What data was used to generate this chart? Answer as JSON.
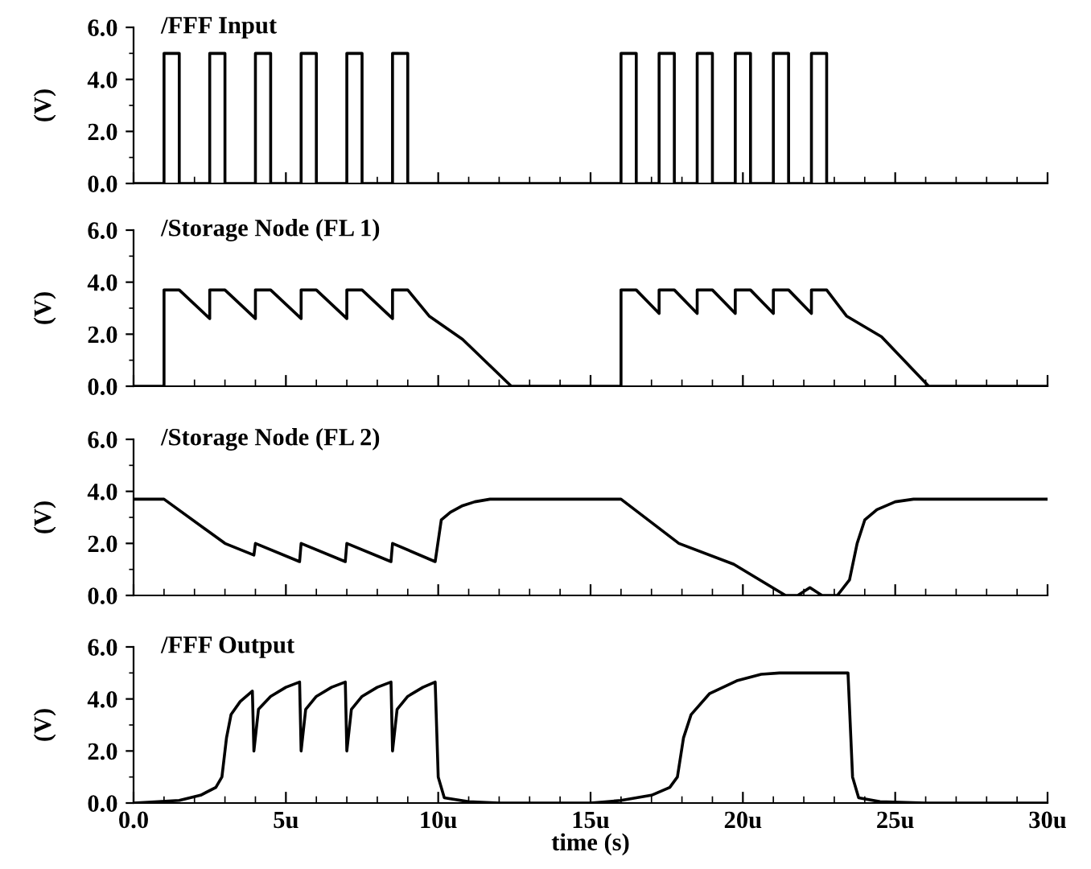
{
  "chart_data": [
    {
      "type": "line",
      "title": "/FFF Input",
      "ylabel": "(V)",
      "xlim": [
        0,
        30
      ],
      "xticks": [
        {
          "value": 0,
          "label": null
        },
        {
          "value": 5,
          "label": null
        },
        {
          "value": 10,
          "label": null
        },
        {
          "value": 15,
          "label": null
        },
        {
          "value": 20,
          "label": null
        },
        {
          "value": 25,
          "label": null
        },
        {
          "value": 30,
          "label": null
        }
      ],
      "ylim": [
        0,
        6
      ],
      "yticks": [
        {
          "value": 0,
          "label": "0.0"
        },
        {
          "value": 2,
          "label": "2.0"
        },
        {
          "value": 4,
          "label": "4.0"
        },
        {
          "value": 6,
          "label": "6.0"
        }
      ],
      "tick_labels": "y",
      "line_style": "solid",
      "series": [
        {
          "color": "#000000",
          "x": [
            0,
            1,
            1,
            1.5,
            1.5,
            2.5,
            2.5,
            3,
            3,
            4,
            4,
            4.5,
            4.5,
            5.5,
            5.5,
            6,
            6,
            7,
            7,
            7.5,
            7.5,
            8.5,
            8.5,
            9,
            9,
            16,
            16,
            16.5,
            16.5,
            17.25,
            17.25,
            17.75,
            17.75,
            18.5,
            18.5,
            19,
            19,
            19.75,
            19.75,
            20.25,
            20.25,
            21,
            21,
            21.5,
            21.5,
            22.25,
            22.25,
            22.75,
            22.75,
            30
          ],
          "values": [
            0,
            0,
            5,
            5,
            0,
            0,
            5,
            5,
            0,
            0,
            5,
            5,
            0,
            0,
            5,
            5,
            0,
            0,
            5,
            5,
            0,
            0,
            5,
            5,
            0,
            0,
            5,
            5,
            0,
            0,
            5,
            5,
            0,
            0,
            5,
            5,
            0,
            0,
            5,
            5,
            0,
            0,
            5,
            5,
            0,
            0,
            5,
            5,
            0,
            0
          ]
        }
      ]
    },
    {
      "type": "line",
      "title": "/Storage Node (FL 1)",
      "ylabel": "(V)",
      "xlim": [
        0,
        30
      ],
      "xticks": [
        {
          "value": 0,
          "label": null
        },
        {
          "value": 5,
          "label": null
        },
        {
          "value": 10,
          "label": null
        },
        {
          "value": 15,
          "label": null
        },
        {
          "value": 20,
          "label": null
        },
        {
          "value": 25,
          "label": null
        },
        {
          "value": 30,
          "label": null
        }
      ],
      "ylim": [
        0,
        6
      ],
      "yticks": [
        {
          "value": 0,
          "label": "0.0"
        },
        {
          "value": 2,
          "label": "2.0"
        },
        {
          "value": 4,
          "label": "4.0"
        },
        {
          "value": 6,
          "label": "6.0"
        }
      ],
      "tick_labels": "y",
      "line_style": "solid",
      "series": [
        {
          "color": "#000000",
          "x": [
            0,
            1,
            1,
            1.5,
            2.5,
            2.5,
            3,
            4,
            4,
            4.5,
            5.5,
            5.5,
            6,
            7,
            7,
            7.5,
            8.5,
            8.5,
            9,
            9.7,
            10.8,
            12.4,
            16,
            16,
            16.5,
            17.25,
            17.25,
            17.75,
            18.5,
            18.5,
            19,
            19.75,
            19.75,
            20.25,
            21,
            21,
            21.5,
            22.25,
            22.25,
            22.75,
            23.4,
            24.55,
            26.1,
            30
          ],
          "values": [
            0,
            0,
            3.7,
            3.7,
            2.6,
            3.7,
            3.7,
            2.6,
            3.7,
            3.7,
            2.6,
            3.7,
            3.7,
            2.6,
            3.7,
            3.7,
            2.6,
            3.7,
            3.7,
            2.7,
            1.8,
            0,
            0,
            3.7,
            3.7,
            2.8,
            3.7,
            3.7,
            2.8,
            3.7,
            3.7,
            2.8,
            3.7,
            3.7,
            2.8,
            3.7,
            3.7,
            2.8,
            3.7,
            3.7,
            2.7,
            1.9,
            0,
            0
          ]
        }
      ]
    },
    {
      "type": "line",
      "title": "/Storage Node (FL 2)",
      "ylabel": "(V)",
      "xlim": [
        0,
        30
      ],
      "xticks": [
        {
          "value": 0,
          "label": null
        },
        {
          "value": 5,
          "label": null
        },
        {
          "value": 10,
          "label": null
        },
        {
          "value": 15,
          "label": null
        },
        {
          "value": 20,
          "label": null
        },
        {
          "value": 25,
          "label": null
        },
        {
          "value": 30,
          "label": null
        }
      ],
      "ylim": [
        0,
        6
      ],
      "yticks": [
        {
          "value": 0,
          "label": "0.0"
        },
        {
          "value": 2,
          "label": "2.0"
        },
        {
          "value": 4,
          "label": "4.0"
        },
        {
          "value": 6,
          "label": "6.0"
        }
      ],
      "tick_labels": "y",
      "line_style": "solid",
      "series": [
        {
          "color": "#000000",
          "x": [
            0,
            1,
            3,
            3.95,
            4,
            5.45,
            5.5,
            6.95,
            7,
            8.45,
            8.5,
            9.9,
            10.1,
            10.4,
            10.8,
            11.2,
            11.7,
            16,
            17.9,
            19.7,
            21.4,
            21.8,
            22.2,
            22.6,
            23.1,
            23.5,
            23.75,
            24,
            24.4,
            25,
            25.6,
            30
          ],
          "values": [
            3.7,
            3.7,
            2.0,
            1.55,
            2.0,
            1.3,
            2.0,
            1.3,
            2.0,
            1.3,
            2.0,
            1.3,
            2.9,
            3.2,
            3.45,
            3.6,
            3.7,
            3.7,
            2.0,
            1.2,
            0,
            0,
            0.3,
            0,
            0,
            0.6,
            2.0,
            2.9,
            3.3,
            3.6,
            3.7,
            3.7
          ]
        }
      ]
    },
    {
      "type": "line",
      "title": "/FFF Output",
      "ylabel": "(V)",
      "xlabel": "time (s)",
      "xlim": [
        0,
        30
      ],
      "xticks": [
        {
          "value": 0,
          "label": "0.0"
        },
        {
          "value": 5,
          "label": "5u"
        },
        {
          "value": 10,
          "label": "10u"
        },
        {
          "value": 15,
          "label": "15u"
        },
        {
          "value": 20,
          "label": "20u"
        },
        {
          "value": 25,
          "label": "25u"
        },
        {
          "value": 30,
          "label": "30u"
        }
      ],
      "ylim": [
        0,
        6
      ],
      "yticks": [
        {
          "value": 0,
          "label": "0.0"
        },
        {
          "value": 2,
          "label": "2.0"
        },
        {
          "value": 4,
          "label": "4.0"
        },
        {
          "value": 6,
          "label": "6.0"
        }
      ],
      "line_style": "solid",
      "series": [
        {
          "color": "#000000",
          "x": [
            0,
            1.5,
            2.2,
            2.7,
            2.9,
            3.05,
            3.2,
            3.5,
            3.9,
            3.95,
            4.1,
            4.5,
            5.0,
            5.45,
            5.5,
            5.65,
            6.0,
            6.5,
            6.95,
            7,
            7.15,
            7.5,
            8.0,
            8.45,
            8.5,
            8.65,
            9.0,
            9.5,
            9.9,
            10.0,
            10.2,
            11,
            12,
            15,
            16,
            17,
            17.6,
            17.85,
            18.05,
            18.3,
            18.9,
            19.8,
            20.6,
            21.2,
            23.45,
            23.6,
            23.8,
            24.5,
            26,
            30
          ],
          "values": [
            0,
            0.1,
            0.3,
            0.6,
            1.0,
            2.5,
            3.4,
            3.9,
            4.3,
            2.0,
            3.6,
            4.1,
            4.45,
            4.65,
            2.0,
            3.6,
            4.1,
            4.45,
            4.65,
            2.0,
            3.6,
            4.1,
            4.45,
            4.65,
            2.0,
            3.6,
            4.1,
            4.45,
            4.65,
            1.0,
            0.2,
            0.05,
            0,
            0,
            0.1,
            0.3,
            0.6,
            1.0,
            2.5,
            3.4,
            4.2,
            4.7,
            4.95,
            5.0,
            5.0,
            1.0,
            0.2,
            0.05,
            0,
            0
          ]
        }
      ]
    }
  ]
}
